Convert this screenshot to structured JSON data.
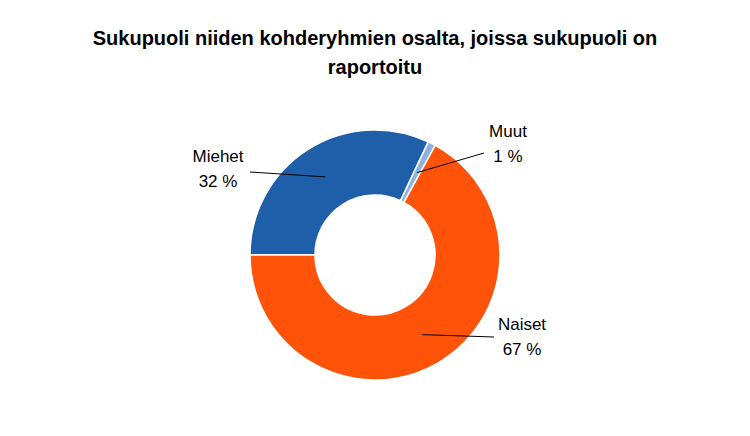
{
  "chart_data": {
    "type": "donut",
    "title": "Sukupuoli niiden kohderyhmien osalta, joissa sukupuoli on raportoitu",
    "categories": [
      "Miehet",
      "Muut",
      "Naiset"
    ],
    "values": [
      32,
      1,
      67
    ],
    "value_labels": [
      "32 %",
      "1 %",
      "67 %"
    ],
    "colors": [
      "#1f5fa9",
      "#8db3e2",
      "#ff5309"
    ],
    "data_labels": true
  }
}
